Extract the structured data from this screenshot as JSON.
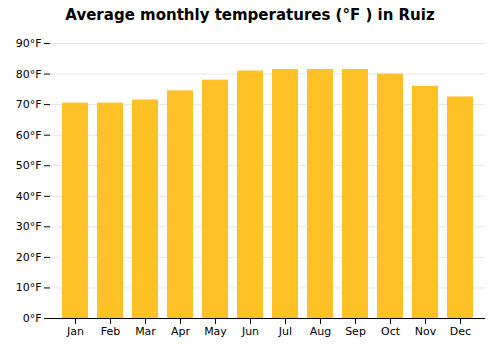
{
  "chart_data": {
    "type": "bar",
    "title": "Average monthly temperatures (°F ) in Ruiz",
    "categories": [
      "Jan",
      "Feb",
      "Mar",
      "Apr",
      "May",
      "Jun",
      "Jul",
      "Aug",
      "Sep",
      "Oct",
      "Nov",
      "Dec"
    ],
    "values": [
      70.5,
      70.5,
      71.5,
      74.5,
      78,
      81,
      81.5,
      81.5,
      81.5,
      80,
      76,
      72.5
    ],
    "color": "#FFC125",
    "ylim": [
      0,
      90
    ],
    "yticks": [
      {
        "value": 0,
        "label": "0°F"
      },
      {
        "value": 10,
        "label": "10°F"
      },
      {
        "value": 20,
        "label": "20°F"
      },
      {
        "value": 30,
        "label": "30°F"
      },
      {
        "value": 40,
        "label": "40°F"
      },
      {
        "value": 50,
        "label": "50°F"
      },
      {
        "value": 60,
        "label": "60°F"
      },
      {
        "value": 70,
        "label": "70°F"
      },
      {
        "value": 80,
        "label": "80°F"
      },
      {
        "value": 90,
        "label": "90°F"
      }
    ],
    "grid": true
  }
}
